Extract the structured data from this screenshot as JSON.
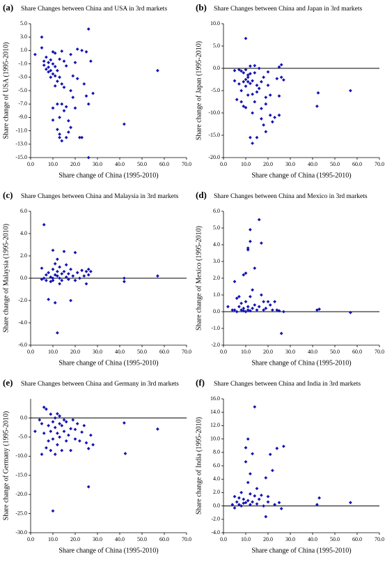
{
  "chart_data": [
    {
      "type": "scatter",
      "panel_label": "(a)",
      "title": "Share Changes between China and USA in 3rd markets",
      "xlabel": "Share change of China (1995-2010)",
      "ylabel": "Share change of USA (1995-2010)",
      "color": "#1414b4",
      "x": [
        2,
        5,
        5,
        6,
        6,
        7,
        7,
        8,
        8,
        8,
        9,
        9,
        9,
        10,
        10,
        10,
        10,
        10,
        11,
        11,
        11,
        11,
        12,
        12,
        12,
        12,
        13,
        13,
        13,
        13,
        13,
        14,
        14,
        14,
        14,
        15,
        15,
        15,
        16,
        16,
        16,
        17,
        17,
        18,
        18,
        18,
        19,
        19,
        20,
        20,
        21,
        21,
        22,
        23,
        23,
        24,
        25,
        25,
        26,
        26,
        26,
        27,
        28,
        42,
        57
      ],
      "y": [
        0.4,
        3,
        1.4,
        -0.6,
        -1.2,
        -1.8,
        0,
        -2.2,
        -0.8,
        -1.5,
        -3,
        -0.4,
        -2,
        -2.5,
        0.8,
        -1,
        -7.6,
        -9.4,
        -2.8,
        -4.3,
        0.6,
        -1.4,
        -7,
        -10.8,
        -3.6,
        -2,
        -12,
        -11.5,
        -9,
        -3,
        -0.3,
        -12.5,
        -4,
        -7,
        0.9,
        -4.5,
        -0.6,
        -8,
        -12,
        -1.3,
        -7.4,
        -11.2,
        -9.5,
        0.4,
        -5,
        -10.5,
        -2.8,
        -6,
        -0.8,
        -7.6,
        1.2,
        -3.2,
        -12,
        1,
        -12,
        -4,
        0.8,
        -5.8,
        -7,
        -15,
        4.2,
        -0.6,
        -5.4,
        -10,
        -2
      ],
      "xlim": [
        0,
        70
      ],
      "xticks": [
        {
          "value": 0,
          "label": "0.0"
        },
        {
          "value": 10,
          "label": "10.0"
        },
        {
          "value": 20,
          "label": "20.0"
        },
        {
          "value": 30,
          "label": "30.0"
        },
        {
          "value": 40,
          "label": "40.0"
        },
        {
          "value": 50,
          "label": "50.0"
        },
        {
          "value": 60,
          "label": "60.0"
        },
        {
          "value": 70,
          "label": "70.0"
        }
      ],
      "ylim": [
        -15,
        5
      ],
      "yticks": [
        {
          "value": 5,
          "label": "5.0"
        },
        {
          "value": 3,
          "label": "3.0"
        },
        {
          "value": 1,
          "label": "1.0"
        },
        {
          "value": -1,
          "label": "-1.0"
        },
        {
          "value": -3,
          "label": "-3.0"
        },
        {
          "value": -5,
          "label": "-5.0"
        },
        {
          "value": -7,
          "label": "-7.0"
        },
        {
          "value": -9,
          "label": "-9.0"
        },
        {
          "value": -11,
          "label": "-11.0"
        },
        {
          "value": -13,
          "label": "-13.0"
        },
        {
          "value": -15,
          "label": "-15.0"
        }
      ]
    },
    {
      "type": "scatter",
      "panel_label": "(b)",
      "title": "Share Changes between China and Japan in 3rd markets",
      "xlabel": "Share change of China (1995-2010)",
      "ylabel": "Share change of Japan (1995-2010)",
      "color": "#1414b4",
      "x": [
        5,
        5,
        6,
        7,
        7,
        8,
        8,
        8,
        9,
        9,
        9,
        10,
        10,
        10,
        10,
        10,
        11,
        11,
        11,
        11,
        12,
        12,
        12,
        12,
        13,
        13,
        13,
        13,
        14,
        14,
        14,
        15,
        15,
        15,
        16,
        16,
        17,
        17,
        17,
        18,
        18,
        19,
        19,
        19,
        20,
        20,
        21,
        21,
        22,
        23,
        24,
        25,
        25,
        25,
        26,
        26,
        27,
        42,
        42.5,
        57
      ],
      "y": [
        -0.5,
        -2.8,
        -7,
        -0.3,
        -3.5,
        -0.6,
        -5,
        -7.5,
        -1,
        -3,
        -8.5,
        6.7,
        -0.3,
        -2.5,
        -4,
        -8.8,
        -1.5,
        -2,
        -3,
        -6,
        0.5,
        -1.2,
        -15.5,
        -3.4,
        -16.8,
        -2.8,
        -5.8,
        -10,
        -1,
        0.6,
        -7.5,
        -15.5,
        -3.8,
        -5.3,
        -4.5,
        0,
        -11.3,
        -3,
        -9,
        -12.7,
        -2,
        -6.5,
        -8,
        -14.2,
        -0.8,
        -3.8,
        -10.5,
        -6,
        -12,
        -11,
        -2.3,
        0.3,
        -10.5,
        -6.2,
        0.8,
        -2,
        -2.6,
        -8.5,
        -5.5,
        -5
      ],
      "xlim": [
        0,
        70
      ],
      "xticks": [
        {
          "value": 0,
          "label": "0.0"
        },
        {
          "value": 10,
          "label": "10.0"
        },
        {
          "value": 20,
          "label": "20.0"
        },
        {
          "value": 30,
          "label": "30.0"
        },
        {
          "value": 40,
          "label": "40.0"
        },
        {
          "value": 50,
          "label": "50.0"
        },
        {
          "value": 60,
          "label": "60.0"
        },
        {
          "value": 70,
          "label": "70.0"
        }
      ],
      "ylim": [
        -20,
        10
      ],
      "yticks": [
        {
          "value": 10,
          "label": "10.0"
        },
        {
          "value": 5,
          "label": "5.0"
        },
        {
          "value": 0,
          "label": "0.0"
        },
        {
          "value": -5,
          "label": "-5.0"
        },
        {
          "value": -10,
          "label": "-10.0"
        },
        {
          "value": -15,
          "label": "-15.0"
        },
        {
          "value": -20,
          "label": "-20.0"
        }
      ]
    },
    {
      "type": "scatter",
      "panel_label": "(c)",
      "title": "Share Changes between China and Malaysia in 3rd markets",
      "xlabel": "Share change of China (1995-2010)",
      "ylabel": "Share change of Malaysia (1995-2010)",
      "color": "#1414b4",
      "x": [
        5,
        5,
        6,
        6,
        7,
        7,
        8,
        8,
        9,
        9,
        10,
        10,
        10,
        10,
        11,
        11,
        11,
        12,
        12,
        12,
        12,
        13,
        13,
        13,
        14,
        14,
        15,
        15,
        16,
        16,
        17,
        17,
        18,
        18,
        19,
        20,
        20,
        21,
        22,
        23,
        24,
        25,
        25,
        26,
        26,
        27,
        42,
        42,
        57
      ],
      "y": [
        0.9,
        -0.1,
        4.8,
        0,
        0.3,
        -0.2,
        -1.9,
        0.5,
        0.1,
        -0.3,
        2.5,
        0.8,
        -0.2,
        0,
        1.3,
        -2.2,
        0.3,
        -4.9,
        1.7,
        0.2,
        0.6,
        1,
        0,
        -0.5,
        0.4,
        -0.2,
        2.4,
        0.6,
        1.2,
        0.1,
        -0.1,
        0.4,
        -2,
        0.8,
        0.2,
        2.3,
        -0.2,
        0.5,
        0,
        0.7,
        0.2,
        0.6,
        -0.5,
        0.3,
        0.8,
        0.6,
        0,
        -0.3,
        0.2
      ],
      "xlim": [
        0,
        70
      ],
      "xticks": [
        {
          "value": 0,
          "label": "0.0"
        },
        {
          "value": 10,
          "label": "10.0"
        },
        {
          "value": 20,
          "label": "20.0"
        },
        {
          "value": 30,
          "label": "30.0"
        },
        {
          "value": 40,
          "label": "40.0"
        },
        {
          "value": 50,
          "label": "50.0"
        },
        {
          "value": 60,
          "label": "60.0"
        },
        {
          "value": 70,
          "label": "70.0"
        }
      ],
      "ylim": [
        -6,
        6
      ],
      "yticks": [
        {
          "value": 6,
          "label": "6.0"
        },
        {
          "value": 4,
          "label": "4.0"
        },
        {
          "value": 2,
          "label": "2.0"
        },
        {
          "value": 0,
          "label": "0.0"
        },
        {
          "value": -2,
          "label": "-2.0"
        },
        {
          "value": -4,
          "label": "-4.0"
        },
        {
          "value": -6,
          "label": "-6.0"
        }
      ]
    },
    {
      "type": "scatter",
      "panel_label": "(d)",
      "title": "Share Changes between China and Mexico in 3rd markets",
      "xlabel": "Share change of China (1995-2010)",
      "ylabel": "Share change of Mexico (1995-2010)",
      "color": "#1414b4",
      "x": [
        2,
        4,
        5,
        5,
        6,
        6,
        7,
        7,
        8,
        8,
        9,
        9,
        9,
        10,
        10,
        10,
        11,
        11,
        11,
        11,
        12,
        12,
        12,
        12,
        13,
        13,
        14,
        14,
        15,
        16,
        16,
        17,
        17,
        18,
        18,
        19,
        20,
        21,
        22,
        23,
        24,
        25,
        26,
        27,
        42,
        43,
        57
      ],
      "y": [
        0.3,
        0.1,
        1.8,
        0.1,
        0.8,
        0,
        0.3,
        0.9,
        0.1,
        0.5,
        2.2,
        0.2,
        0.05,
        2.3,
        0.6,
        0,
        3.7,
        3.8,
        0.3,
        0.1,
        4.9,
        4.2,
        0.9,
        0.05,
        1.3,
        0.2,
        2.6,
        0.4,
        0.1,
        5.5,
        0.3,
        4.1,
        1,
        0.6,
        0.1,
        0.2,
        0.6,
        0.4,
        0.1,
        0.6,
        0.1,
        0.05,
        -1.3,
        0,
        0.1,
        0.15,
        -0.05
      ],
      "xlim": [
        0,
        70
      ],
      "xticks": [
        {
          "value": 0,
          "label": "0.0"
        },
        {
          "value": 10,
          "label": "10.0"
        },
        {
          "value": 20,
          "label": "20.0"
        },
        {
          "value": 30,
          "label": "30.0"
        },
        {
          "value": 40,
          "label": "40.0"
        },
        {
          "value": 50,
          "label": "50.0"
        },
        {
          "value": 60,
          "label": "60.0"
        },
        {
          "value": 70,
          "label": "70.0"
        }
      ],
      "ylim": [
        -2,
        6
      ],
      "yticks": [
        {
          "value": 6,
          "label": "6.0"
        },
        {
          "value": 5,
          "label": "5.0"
        },
        {
          "value": 4,
          "label": "4.0"
        },
        {
          "value": 3,
          "label": "3.0"
        },
        {
          "value": 2,
          "label": "2.0"
        },
        {
          "value": 1,
          "label": "1.0"
        },
        {
          "value": 0,
          "label": "0.0"
        },
        {
          "value": -1,
          "label": "-1.0"
        },
        {
          "value": -2,
          "label": "-2.0"
        }
      ]
    },
    {
      "type": "scatter",
      "panel_label": "(e)",
      "title": "Share Changes between China and Germany in 3rd markets",
      "xlabel": "Share change of China (1995-2010)",
      "ylabel": "Share change of Germany (1995-2010)",
      "color": "#1414b4",
      "x": [
        2,
        4,
        5,
        5,
        6,
        6,
        7,
        7,
        8,
        8,
        9,
        9,
        9,
        10,
        10,
        10,
        11,
        11,
        11,
        12,
        12,
        12,
        13,
        13,
        13,
        14,
        14,
        15,
        15,
        16,
        16,
        17,
        18,
        18,
        19,
        20,
        20,
        21,
        22,
        23,
        24,
        25,
        26,
        26,
        27,
        28,
        42,
        42.5,
        57
      ],
      "y": [
        -3.5,
        -0.5,
        -9.5,
        -1.5,
        2.8,
        -4,
        2.3,
        -7.8,
        -2,
        -6,
        1,
        -3.5,
        -8.5,
        -1,
        -5.5,
        -24.3,
        0,
        -2.5,
        -9.5,
        1.1,
        -4,
        -7,
        0.5,
        -1.5,
        -5,
        -2,
        -8.5,
        -0.5,
        -3.5,
        -6,
        -1,
        -4.5,
        -2.8,
        -8.5,
        -0.5,
        -5.5,
        -3,
        -1.5,
        -6,
        -3.7,
        -2,
        -6.5,
        -8,
        -18,
        -4.5,
        -7,
        -1.3,
        -9.3,
        -2.9
      ],
      "xlim": [
        0,
        70
      ],
      "xticks": [
        {
          "value": 0,
          "label": "0.0"
        },
        {
          "value": 10,
          "label": "10.0"
        },
        {
          "value": 20,
          "label": "20.0"
        },
        {
          "value": 30,
          "label": "30.0"
        },
        {
          "value": 40,
          "label": "40.0"
        },
        {
          "value": 50,
          "label": "50.0"
        },
        {
          "value": 60,
          "label": "60.0"
        },
        {
          "value": 70,
          "label": "70.0"
        }
      ],
      "ylim": [
        -30,
        5
      ],
      "yticks": [
        {
          "value": 0,
          "label": "0.0"
        },
        {
          "value": -5,
          "label": "-5.0"
        },
        {
          "value": -10,
          "label": "-10.0"
        },
        {
          "value": -15,
          "label": "-15.0"
        },
        {
          "value": -20,
          "label": "-20.0"
        },
        {
          "value": -25,
          "label": "-25.0"
        },
        {
          "value": -30,
          "label": "-30.0"
        }
      ]
    },
    {
      "type": "scatter",
      "panel_label": "(f)",
      "title": "Share Changes between China and India  in 3rd markets",
      "xlabel": "Share change of China (1995-2010)",
      "ylabel": "Share change of India (1995-2010)",
      "color": "#1414b4",
      "x": [
        4,
        5,
        5,
        6,
        7,
        7,
        8,
        8,
        9,
        9,
        10,
        10,
        10,
        11,
        11,
        11,
        12,
        12,
        12,
        13,
        13,
        14,
        14,
        15,
        15,
        16,
        17,
        18,
        19,
        19,
        20,
        20,
        21,
        22,
        23,
        24,
        25,
        26,
        27,
        42,
        43,
        57
      ],
      "y": [
        0.2,
        1.4,
        -0.3,
        0.6,
        0.2,
        1.2,
        0,
        2,
        0.4,
        1,
        8.7,
        6.6,
        0.5,
        10,
        3.5,
        0.8,
        4.8,
        1.8,
        0.2,
        0.6,
        7.8,
        14.8,
        1.5,
        2.6,
        0.3,
        1,
        1.6,
        0,
        -1.6,
        4.2,
        0.6,
        1.4,
        7.7,
        5.3,
        0.2,
        8.6,
        0.5,
        -0.4,
        8.9,
        0.2,
        1.2,
        0.5
      ],
      "xlim": [
        0,
        70
      ],
      "xticks": [
        {
          "value": 0,
          "label": "0.0"
        },
        {
          "value": 10,
          "label": "10.0"
        },
        {
          "value": 20,
          "label": "20.0"
        },
        {
          "value": 30,
          "label": "30.0"
        },
        {
          "value": 40,
          "label": "40.0"
        },
        {
          "value": 50,
          "label": "50.0"
        },
        {
          "value": 60,
          "label": "60.0"
        },
        {
          "value": 70,
          "label": "70.0"
        }
      ],
      "ylim": [
        -4,
        16
      ],
      "yticks": [
        {
          "value": 16,
          "label": "16.0"
        },
        {
          "value": 14,
          "label": "14.0"
        },
        {
          "value": 12,
          "label": "12.0"
        },
        {
          "value": 10,
          "label": "10.0"
        },
        {
          "value": 8,
          "label": "8.0"
        },
        {
          "value": 6,
          "label": "6.0"
        },
        {
          "value": 4,
          "label": "4.0"
        },
        {
          "value": 2,
          "label": "2.0"
        },
        {
          "value": 0,
          "label": "0.0"
        },
        {
          "value": -2,
          "label": "-2.0"
        },
        {
          "value": -4,
          "label": "-4.0"
        }
      ]
    }
  ]
}
